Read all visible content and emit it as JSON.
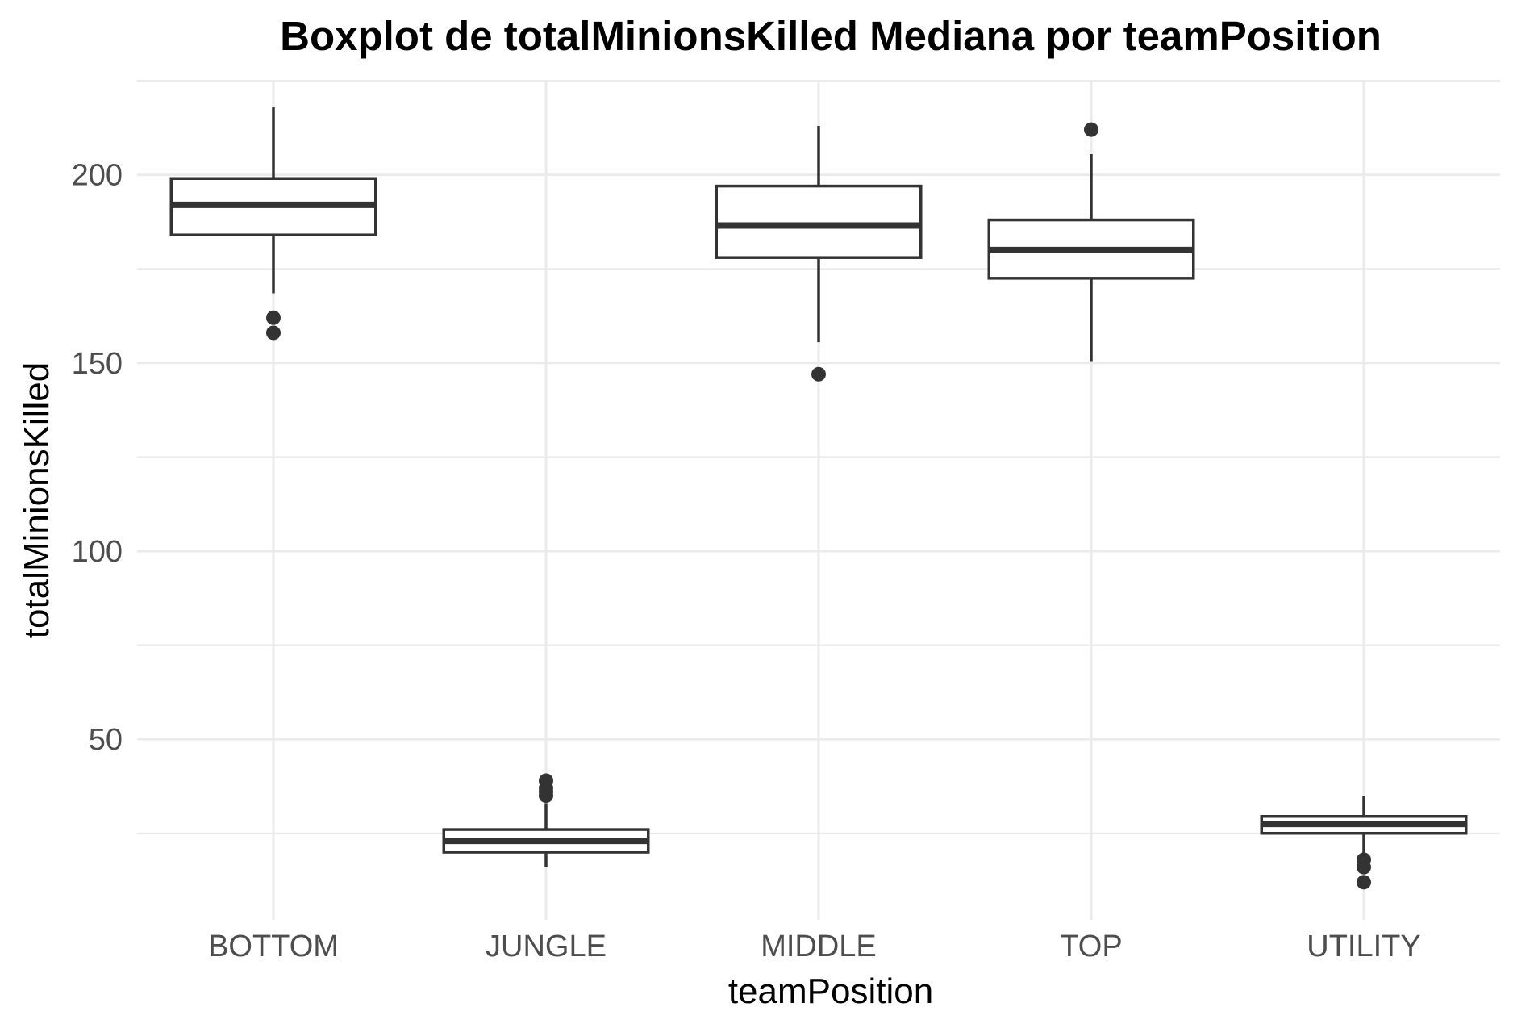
{
  "chart_data": {
    "type": "boxplot",
    "title": "Boxplot de totalMinionsKilled Mediana por teamPosition",
    "xlabel": "teamPosition",
    "ylabel": "totalMinionsKilled",
    "ylim": [
      2,
      225
    ],
    "yticks": [
      50,
      100,
      150,
      200
    ],
    "grid": true,
    "categories": [
      "BOTTOM",
      "JUNGLE",
      "MIDDLE",
      "TOP",
      "UTILITY"
    ],
    "boxes": [
      {
        "category": "BOTTOM",
        "whisker_low": 168.5,
        "q1": 184,
        "median": 192,
        "q3": 199,
        "whisker_high": 218,
        "outliers": [
          162,
          158
        ]
      },
      {
        "category": "JUNGLE",
        "whisker_low": 16,
        "q1": 20,
        "median": 23,
        "q3": 26,
        "whisker_high": 33,
        "outliers": [
          39,
          37,
          36,
          35
        ]
      },
      {
        "category": "MIDDLE",
        "whisker_low": 155.5,
        "q1": 178,
        "median": 186.5,
        "q3": 197,
        "whisker_high": 213,
        "outliers": [
          147
        ]
      },
      {
        "category": "TOP",
        "whisker_low": 150.5,
        "q1": 172.5,
        "median": 180,
        "q3": 188,
        "whisker_high": 205.5,
        "outliers": [
          212
        ]
      },
      {
        "category": "UTILITY",
        "whisker_low": 18,
        "q1": 25,
        "median": 27.5,
        "q3": 29.5,
        "whisker_high": 35,
        "outliers": [
          18,
          16,
          12
        ]
      }
    ]
  }
}
